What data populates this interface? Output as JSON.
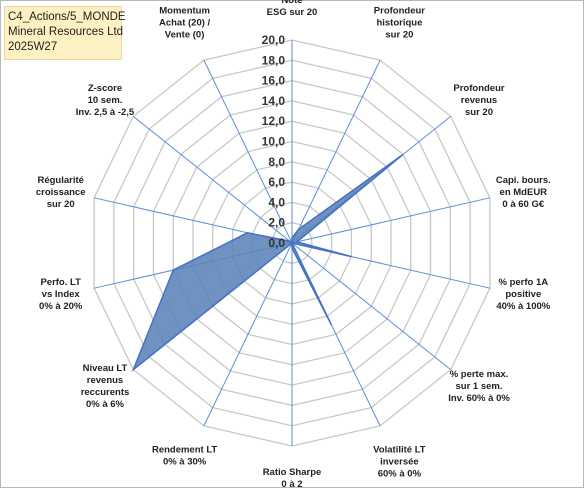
{
  "title": {
    "line1": "C4_Actions/5_MONDE",
    "line2": "Mineral Resources Ltd",
    "line3": "2025W27"
  },
  "colors": {
    "fill": "#5b83b7",
    "stroke": "#4472c4",
    "grid": "#c8c8c8",
    "axis": "#5b8fd6"
  },
  "chart_data": {
    "type": "radar",
    "rmin": 0,
    "rmax": 20,
    "ticks": [
      "0,0",
      "2,0",
      "4,0",
      "6,0",
      "8,0",
      "10,0",
      "12,0",
      "14,0",
      "16,0",
      "18,0",
      "20,0"
    ],
    "categories": [
      [
        "Note",
        "ESG sur 20"
      ],
      [
        "Profondeur",
        "historique",
        "sur 20"
      ],
      [
        "Profondeur",
        "revenus",
        "sur 20"
      ],
      [
        "Capi. bours.",
        "en MdEUR",
        "0 à 60 G€"
      ],
      [
        "% perfo 1A",
        "positive",
        "40% à 100%"
      ],
      [
        "% perte max.",
        "sur 1 sem.",
        "Inv. 60% à 0%"
      ],
      [
        "Volatilité LT",
        "inversée",
        "60% à 0%"
      ],
      [
        "Ratio Sharpe",
        "0 à 2"
      ],
      [
        "Rendement LT",
        "0% à 30%"
      ],
      [
        "Niveau LT",
        "revenus",
        "reccurents",
        "0% à 6%"
      ],
      [
        "Perfo. LT",
        "vs Index",
        "0% à 20%"
      ],
      [
        "Régularité",
        "croissance",
        "sur 20"
      ],
      [
        "Z-score",
        "10 sem.",
        "Inv. 2,5 à -2,5"
      ],
      [
        "Momentum",
        "Achat (20) /",
        "Vente (0)"
      ]
    ],
    "values": [
      0.5,
      1.5,
      14,
      0.5,
      6,
      0,
      9,
      0.5,
      0,
      20,
      12,
      4.5,
      0.3,
      0
    ]
  }
}
